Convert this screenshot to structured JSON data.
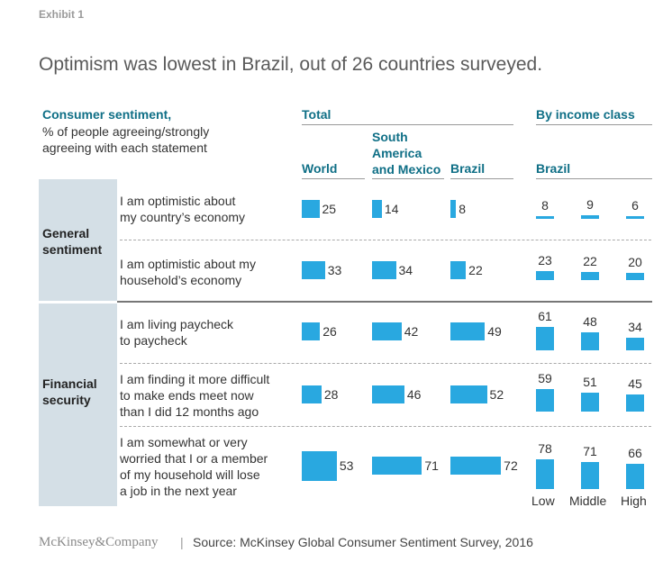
{
  "exhibit": "Exhibit 1",
  "title": "Optimism was lowest in Brazil, out of 26 countries surveyed.",
  "legend_title": "Consumer sentiment,",
  "legend_sub_1": "% of people agreeing/strongly",
  "legend_sub_2": "agreeing with each statement",
  "colors": {
    "bar": "#29a8e0",
    "header": "#0f6f86",
    "panel": "#d4dfe6"
  },
  "chart_data": {
    "type": "bar",
    "group_headers": {
      "total": "Total",
      "income": "By income class"
    },
    "columns": [
      {
        "key": "world",
        "label": "World",
        "group": "total"
      },
      {
        "key": "sam",
        "label_1": "South",
        "label_2": "America",
        "label_3": "and Mexico",
        "group": "total"
      },
      {
        "key": "brazil",
        "label": "Brazil",
        "group": "total"
      },
      {
        "key": "income",
        "label": "Brazil",
        "group": "income"
      }
    ],
    "income_classes": [
      "Low",
      "Middle",
      "High"
    ],
    "sections": [
      {
        "label_1": "General",
        "label_2": "sentiment"
      },
      {
        "label_1": "Financial",
        "label_2": "security"
      }
    ],
    "rows": [
      {
        "section": 0,
        "lines": [
          "I am optimistic about",
          "my country’s economy"
        ],
        "world": 25,
        "sam": 14,
        "brazil": 8,
        "income": [
          8,
          9,
          6
        ]
      },
      {
        "section": 0,
        "lines": [
          "I am optimistic about my",
          "household’s economy"
        ],
        "world": 33,
        "sam": 34,
        "brazil": 22,
        "income": [
          23,
          22,
          20
        ]
      },
      {
        "section": 1,
        "lines": [
          "I am living paycheck",
          "to paycheck"
        ],
        "world": 26,
        "sam": 42,
        "brazil": 49,
        "income": [
          61,
          48,
          34
        ]
      },
      {
        "section": 1,
        "lines": [
          "I am finding it more difficult",
          "to make ends meet now",
          "than I did 12 months ago"
        ],
        "world": 28,
        "sam": 46,
        "brazil": 52,
        "income": [
          59,
          51,
          45
        ]
      },
      {
        "section": 1,
        "lines": [
          "I am somewhat or very",
          "worried that I or a member",
          "of my household will lose",
          "a job in the next year"
        ],
        "world": 53,
        "sam": 71,
        "brazil": 72,
        "income": [
          78,
          71,
          66
        ]
      }
    ]
  },
  "footer": {
    "logo": "McKinsey&Company",
    "separator": "|",
    "source": "Source: McKinsey Global Consumer Sentiment Survey, 2016"
  }
}
